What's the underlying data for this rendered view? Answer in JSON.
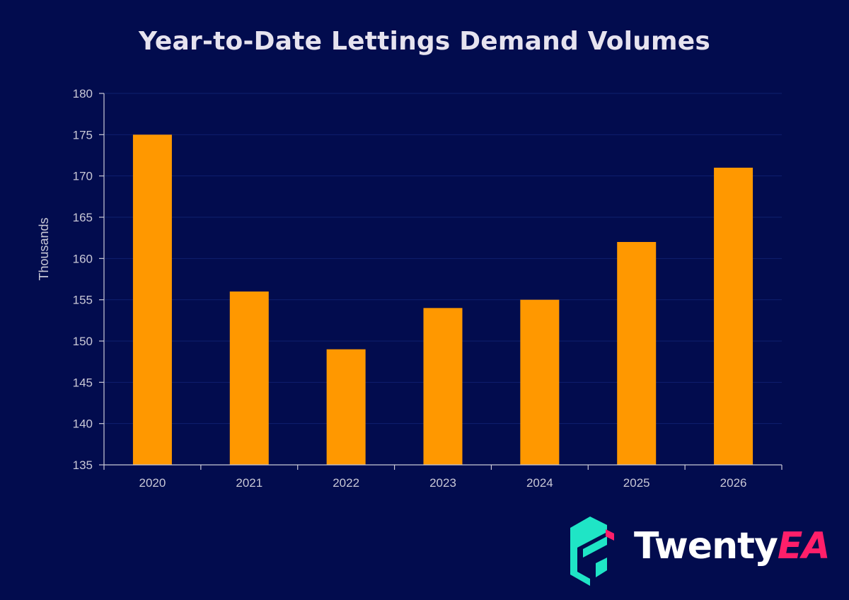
{
  "chart_data": {
    "type": "bar",
    "title": "Year-to-Date Lettings Demand Volumes",
    "xlabel": "",
    "ylabel": "Thousands",
    "categories": [
      "2020",
      "2021",
      "2022",
      "2023",
      "2024",
      "2025",
      "2026"
    ],
    "values": [
      175,
      156,
      149,
      154,
      155,
      162,
      171
    ],
    "ylim": [
      135,
      180
    ],
    "yticks": [
      135,
      140,
      145,
      150,
      155,
      160,
      165,
      170,
      175,
      180
    ],
    "grid": true,
    "colors": {
      "background": "#020c4e",
      "bar": "#ff9800",
      "axis": "#c9c8d6",
      "grid": "#0f1f6e",
      "text": "#c9c8d6"
    }
  },
  "brand": {
    "name_part1": "Twenty",
    "name_part2": "EA",
    "mark_icon": "twentyea-e-logo-icon",
    "colors": {
      "mark": "#1fe5c6",
      "accent": "#ff1f6a",
      "text": "#ffffff"
    }
  }
}
